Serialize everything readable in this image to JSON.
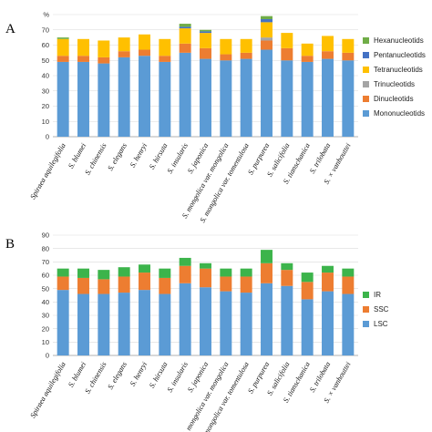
{
  "panels": [
    {
      "letter": "A"
    },
    {
      "letter": "B"
    }
  ],
  "chart_data": [
    {
      "type": "bar",
      "stacked": true,
      "categories": [
        "Spiraea aquilegifolia",
        "S. blumei",
        "S. chinensis",
        "S. elegans",
        "S. henryi",
        "S. hirsuta",
        "S. insularis",
        "S. japonica",
        "S. mongolica var. mongolica",
        "S. mongolica var. tomentulosa",
        "S. purpurea",
        "S. salicifolia",
        "S. tianschanica",
        "S. trilobata",
        "S. × vanhouttei"
      ],
      "ylim": [
        0,
        80
      ],
      "yticks": [
        0,
        10,
        20,
        30,
        40,
        50,
        60,
        70,
        80
      ],
      "top_tick_label": "%",
      "grid": true,
      "legend_position": "right",
      "series": [
        {
          "name": "Mononucleotids",
          "color": "#5b9bd5",
          "values": [
            49,
            49,
            48,
            52,
            53,
            49,
            55,
            51,
            50,
            51,
            57,
            50,
            49,
            51,
            50
          ]
        },
        {
          "name": "Dinucleotids",
          "color": "#ed7d31",
          "values": [
            4,
            4,
            4,
            4,
            4,
            4,
            6,
            7,
            4,
            4,
            6,
            8,
            4,
            5,
            5
          ]
        },
        {
          "name": "Trinucleotids",
          "color": "#a5a5a5",
          "values": [
            0,
            0,
            0,
            0,
            0,
            0,
            0,
            0,
            0,
            0,
            2,
            0,
            0,
            0,
            0
          ]
        },
        {
          "name": "Tetranucleotids",
          "color": "#ffc000",
          "values": [
            11,
            11,
            11,
            9,
            10,
            11,
            10,
            10,
            10,
            9,
            10,
            10,
            8,
            10,
            9
          ]
        },
        {
          "name": "Pentanucleotids",
          "color": "#4472c4",
          "values": [
            0,
            0,
            0,
            0,
            0,
            0,
            1,
            1,
            0,
            0,
            2,
            0,
            0,
            0,
            0
          ]
        },
        {
          "name": "Hexanucleotids",
          "color": "#70ad47",
          "values": [
            1,
            0,
            0,
            0,
            0,
            0,
            2,
            1,
            0,
            0,
            2,
            0,
            0,
            0,
            0
          ]
        }
      ]
    },
    {
      "type": "bar",
      "stacked": true,
      "categories": [
        "Spiraea aquilegifolia",
        "S. blumei",
        "S. chinensis",
        "S. elegans",
        "S. henryi",
        "S. hirsuta",
        "S. insularis",
        "S. japonica",
        "S. mongolica var. mongolica",
        "S. mongolica var. tomentulosa",
        "S. purpurea",
        "S. salicifolia",
        "S. tianschanica",
        "S. trilobata",
        "S. × vanhouttei"
      ],
      "ylim": [
        0,
        90
      ],
      "yticks": [
        0,
        10,
        20,
        30,
        40,
        50,
        60,
        70,
        80,
        90
      ],
      "grid": true,
      "legend_position": "right",
      "series": [
        {
          "name": "LSC",
          "color": "#5b9bd5",
          "values": [
            49,
            46,
            46,
            47,
            49,
            46,
            54,
            51,
            48,
            47,
            54,
            52,
            42,
            48,
            46
          ]
        },
        {
          "name": "SSC",
          "color": "#ed7d31",
          "values": [
            10,
            12,
            11,
            12,
            13,
            12,
            13,
            14,
            11,
            12,
            15,
            12,
            13,
            14,
            13
          ]
        },
        {
          "name": "IR",
          "color": "#3cb44b",
          "values": [
            6,
            7,
            7,
            7,
            6,
            7,
            6,
            4,
            6,
            6,
            10,
            5,
            7,
            5,
            6
          ]
        }
      ]
    }
  ]
}
